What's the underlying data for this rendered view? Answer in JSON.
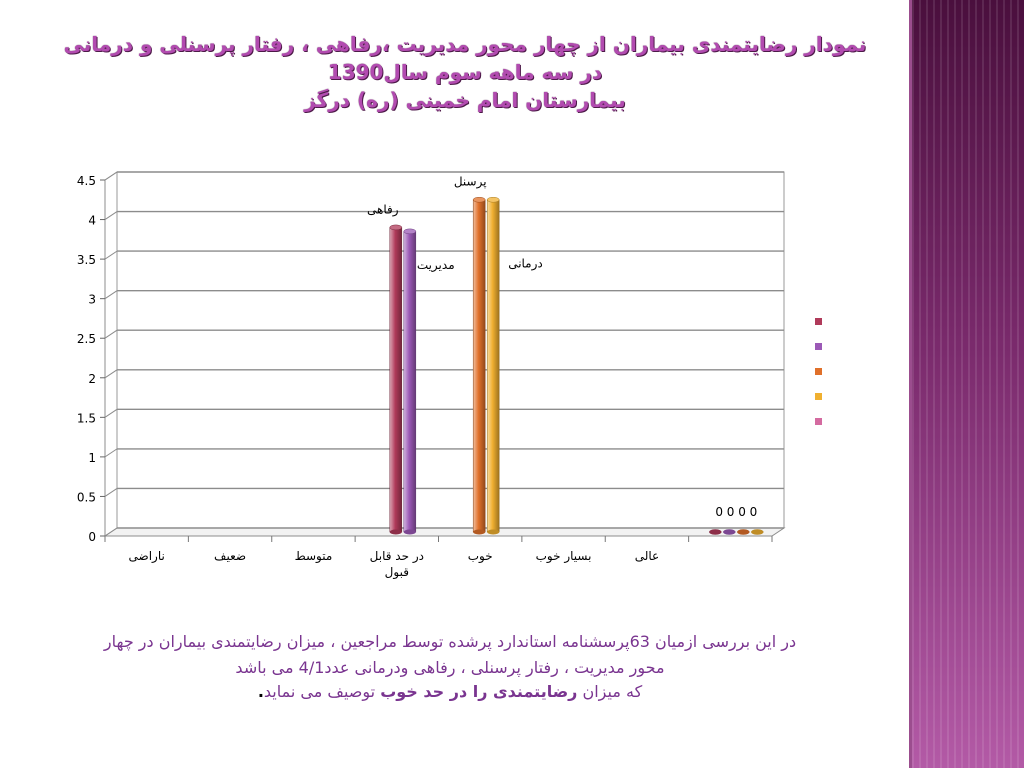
{
  "slide": {
    "title_lines": [
      "نمودار رضایتمندی بیماران از چهار محور مدیریت ،رفاهی ، رفتار پرسنلی و درمانی",
      "در سه ماهه سوم سال1390",
      "بیمارستان امام خمینی (ره) درگز"
    ],
    "footnote": {
      "line1": "در این بررسی ازمیان 63پرسشنامه استاندارد پرشده توسط مراجعین ، میزان رضایتمندی بیماران در چهار",
      "line2": "محور مدیریت ، رفتار پرسنلی ، رفاهی ودرمانی عدد4/1 می باشد",
      "line3_pre": "که میزان ",
      "line3_bold": "رضایتمندی را در حد خوب",
      "line3_post": " توصیف می نماید",
      "line3_end": "."
    },
    "colors": {
      "title": "#b24bb0",
      "note": "#7a3590",
      "side_band": "#6b2060"
    }
  },
  "chart_data": {
    "type": "bar",
    "subtype": "3d-cylinder-clustered",
    "title": "",
    "xlabel": "",
    "ylabel": "",
    "ylim": [
      0,
      4.5
    ],
    "yticks": [
      "0",
      "0.5",
      "1",
      "1.5",
      "2",
      "2.5",
      "3",
      "3.5",
      "4",
      "4.5"
    ],
    "grid": true,
    "legend_position": "right",
    "categories": [
      "ناراضی",
      "ضعیف",
      "متوسط",
      "در حد قابل قبول",
      "خوب",
      "بسیار خوب",
      "عالی",
      ""
    ],
    "series": [
      {
        "color": "#b03a5a",
        "values": [
          null,
          null,
          null,
          3.85,
          null,
          null,
          null,
          0
        ]
      },
      {
        "color": "#9b59b6",
        "values": [
          null,
          null,
          null,
          3.8,
          null,
          null,
          null,
          0
        ]
      },
      {
        "color": "#e0702a",
        "values": [
          null,
          null,
          null,
          null,
          4.2,
          null,
          null,
          0
        ]
      },
      {
        "color": "#f0b030",
        "values": [
          null,
          null,
          null,
          null,
          4.2,
          null,
          null,
          0
        ]
      },
      {
        "color": "#d46aa0",
        "values": [
          null,
          null,
          null,
          null,
          null,
          null,
          null,
          null
        ]
      }
    ],
    "annotations": [
      {
        "text": "رفاهی",
        "x": "در حد قابل قبول",
        "y": 3.85
      },
      {
        "text": "مدیریت",
        "x": "در حد قابل قبول",
        "y": 3.5
      },
      {
        "text": "پرسنل",
        "x": "خوب",
        "y": 4.2
      },
      {
        "text": "درمانی",
        "x": "خوب",
        "y": 3.85
      },
      {
        "text": "0 0 0 0",
        "x": "",
        "y": 0
      }
    ]
  }
}
